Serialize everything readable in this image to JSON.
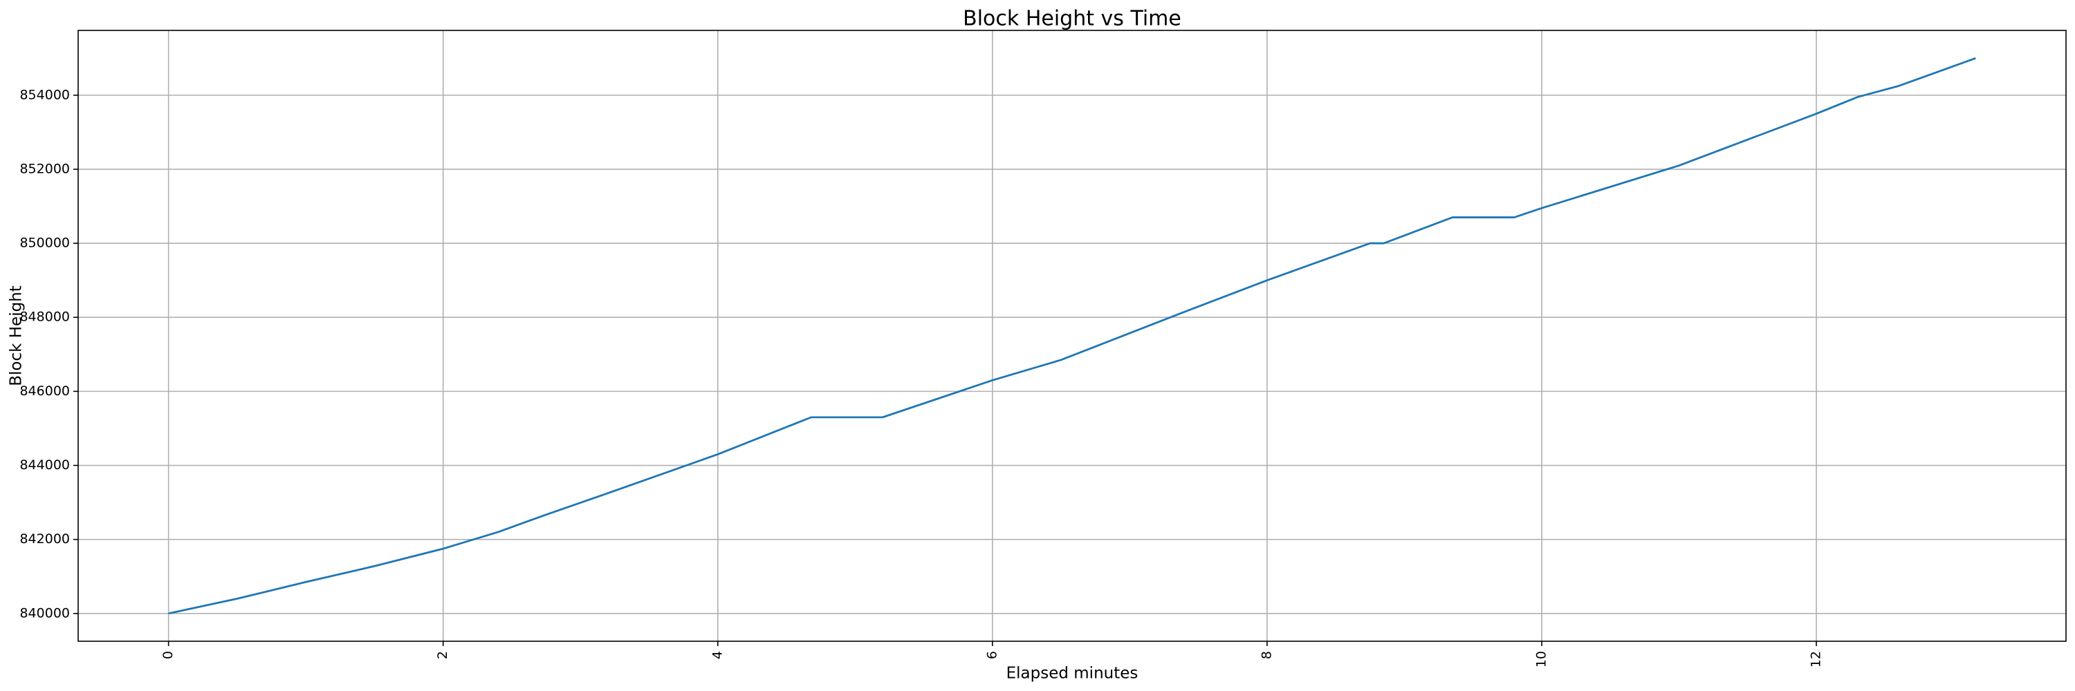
{
  "chart_data": {
    "type": "line",
    "title": "Block Height vs Time",
    "x_label": "Elapsed minutes",
    "y_label": "Block Height",
    "x": [
      0,
      0.5,
      1,
      1.5,
      2,
      2.4,
      2.75,
      3.2,
      4,
      4.68,
      5.2,
      6,
      6.5,
      7.4,
      8,
      8.75,
      8.85,
      9.35,
      9.8,
      10,
      11,
      12,
      12.3,
      12.6,
      13.16
    ],
    "series": [
      {
        "name": "Block Height",
        "color": "#1f77b4",
        "values": [
          840000,
          840400,
          840850,
          841280,
          841750,
          842200,
          842670,
          843250,
          844300,
          845300,
          845300,
          846300,
          846850,
          848150,
          849000,
          850000,
          850000,
          850700,
          850700,
          850950,
          852100,
          853500,
          853950,
          854250,
          855000
        ]
      }
    ],
    "xlim": [
      -0.658,
      13.818
    ],
    "ylim": [
      839250,
      855750
    ],
    "xticks": [
      0,
      2,
      4,
      6,
      8,
      10,
      12
    ],
    "yticks": [
      840000,
      842000,
      844000,
      846000,
      848000,
      850000,
      852000,
      854000
    ],
    "grid": true
  }
}
